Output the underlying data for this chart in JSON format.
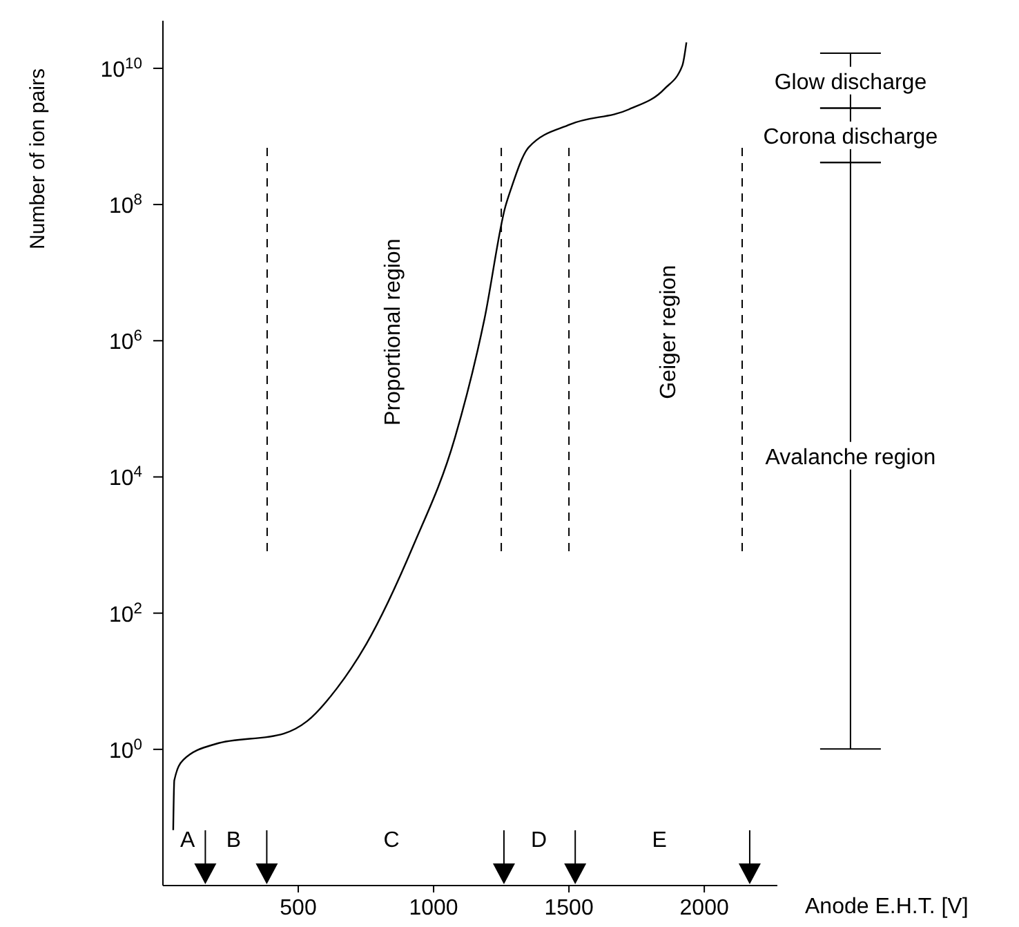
{
  "chart_data": {
    "type": "line",
    "xlabel": "Anode E.H.T. [V]",
    "ylabel": "Number of ion pairs",
    "x": [
      38,
      42,
      75,
      195,
      446,
      533,
      642,
      751,
      926,
      1079,
      1188,
      1265,
      1286,
      1351,
      1504,
      1722,
      1853,
      1919,
      1934
    ],
    "series": [
      {
        "color": "#000000",
        "values": [
          0.065,
          0.35,
          0.7,
          1.2,
          1.7,
          2.6,
          7.8,
          35,
          1000,
          38000,
          2100000,
          93000000,
          170000000,
          690000000,
          1500000000,
          2500000000,
          5000000000,
          11000000000,
          24000000000
        ]
      }
    ],
    "log": "y",
    "xlim": [
      0,
      2270
    ],
    "xticks": [
      500,
      1000,
      1500,
      2000
    ],
    "ylim": [
      0.01,
      50000000000
    ],
    "yticks": [
      {
        "value": 1,
        "label": "10$^{0}$"
      },
      {
        "value": 100,
        "label": "10$^{2}$"
      },
      {
        "value": 10000,
        "label": "10$^{4}$"
      },
      {
        "value": 1000000,
        "label": "10$^{6}$"
      },
      {
        "value": 100000000,
        "label": "10$^{8}$"
      },
      {
        "value": 10000000000,
        "label": "10$^{10}$"
      }
    ],
    "ref_lines": [
      {
        "axis": "x",
        "value": 385,
        "color": "#000000",
        "line_style": "dashed"
      },
      {
        "axis": "x",
        "value": 1250,
        "color": "#000000",
        "line_style": "dashed"
      },
      {
        "axis": "x",
        "value": 1500,
        "color": "#000000",
        "line_style": "dashed"
      },
      {
        "axis": "x",
        "value": 2140,
        "color": "#000000",
        "line_style": "dashed"
      }
    ],
    "annotations": [
      "Proportional region",
      "Geiger region",
      "A",
      "B",
      "C",
      "D",
      "E",
      "Glow discharge",
      "Corona discharge",
      "Avalanche region"
    ]
  }
}
